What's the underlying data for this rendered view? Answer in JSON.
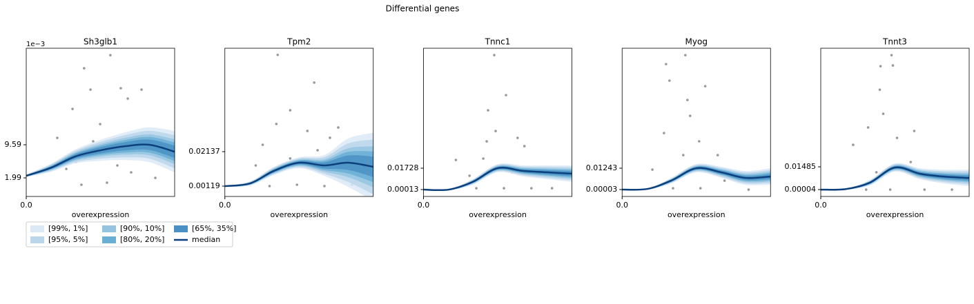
{
  "title": "Differential genes",
  "legend": {
    "location": "lower left",
    "columns": 3,
    "entries": [
      {
        "name": "[99%, 1%]",
        "color": "#dbe9f6"
      },
      {
        "name": "[95%, 5%]",
        "color": "#bad6eb"
      },
      {
        "name": "[90%, 10%]",
        "color": "#94c4df"
      },
      {
        "name": "[80%, 20%]",
        "color": "#6aaed6"
      },
      {
        "name": "[65%, 35%]",
        "color": "#4a90c4"
      },
      {
        "name": "median",
        "color": "#0b3f7d"
      }
    ]
  },
  "point_color": "#999999",
  "chart_data": [
    {
      "type": "line",
      "title": "Sh3glb1",
      "y_offset_label": "1e−3",
      "x_label": "overexpression",
      "xlim": [
        0,
        1
      ],
      "xticks": [
        {
          "value": 0,
          "label": "0.0"
        }
      ],
      "ylim": [
        -2.28,
        31.76
      ],
      "yticks": [
        1.99,
        9.59
      ],
      "x": [
        0,
        0.17,
        0.33,
        0.5,
        0.67,
        0.83,
        1
      ],
      "bands": [
        {
          "lower": [
            2.16,
            3.41,
            5.3,
            5.92,
            6.07,
            5.59,
            3.25
          ],
          "upper": [
            2.76,
            5.31,
            8.5,
            10.72,
            12.47,
            13.59,
            12.75
          ]
        },
        {
          "lower": [
            2.22,
            3.6,
            5.62,
            6.4,
            6.71,
            6.39,
            4.2
          ],
          "upper": [
            2.7,
            5.12,
            8.18,
            10.24,
            11.83,
            12.79,
            11.8
          ]
        },
        {
          "lower": [
            2.28,
            3.79,
            5.94,
            6.88,
            7.35,
            7.19,
            5.15
          ],
          "upper": [
            2.64,
            4.93,
            7.86,
            9.76,
            11.19,
            11.99,
            10.85
          ]
        },
        {
          "lower": [
            2.32,
            3.93,
            6.18,
            7.24,
            7.83,
            7.79,
            5.86
          ],
          "upper": [
            2.6,
            4.79,
            7.62,
            9.4,
            10.71,
            11.39,
            10.14
          ]
        },
        {
          "lower": [
            2.37,
            4.07,
            6.42,
            7.6,
            8.31,
            8.39,
            6.57
          ],
          "upper": [
            2.55,
            4.65,
            7.38,
            9.04,
            10.23,
            10.79,
            9.43
          ]
        }
      ],
      "median": [
        2.46,
        4.36,
        6.9,
        8.32,
        9.27,
        9.59,
        8.0
      ],
      "points": {
        "x": [
          0.567,
          0.39,
          0.433,
          0.637,
          0.777,
          0.312,
          0.684,
          0.498,
          0.209,
          0.27,
          0.372,
          0.544,
          0.87,
          0.94,
          0.614,
          0.335,
          0.451,
          0.707
        ],
        "y": [
          30.17,
          27.16,
          22.26,
          22.57,
          22.26,
          17.82,
          20.2,
          14.34,
          11.17,
          4.05,
          0.41,
          0.88,
          1.99,
          8.32,
          4.84,
          5.63,
          10.38,
          3.26
        ]
      }
    },
    {
      "type": "line",
      "title": "Tpm2",
      "x_label": "overexpression",
      "xlim": [
        0,
        1
      ],
      "xticks": [
        {
          "value": 0,
          "label": "0.0"
        }
      ],
      "ylim": [
        -0.00486,
        0.0819
      ],
      "yticks": [
        0.00119,
        0.02137
      ],
      "x": [
        0,
        0.17,
        0.33,
        0.5,
        0.67,
        0.83,
        1
      ],
      "bands": [
        {
          "lower": [
            0.00079,
            0.0016,
            0.0077,
            0.0117,
            0.0072,
            0.0008,
            -0.0075
          ],
          "upper": [
            0.00159,
            0.004,
            0.0125,
            0.0181,
            0.0194,
            0.029,
            0.0325
          ]
        },
        {
          "lower": [
            0.00087,
            0.00184,
            0.00818,
            0.01234,
            0.00842,
            0.00362,
            -0.0035
          ],
          "upper": [
            0.00151,
            0.00376,
            0.01202,
            0.01746,
            0.01818,
            0.02618,
            0.0285
          ]
        },
        {
          "lower": [
            0.00095,
            0.00208,
            0.00866,
            0.01298,
            0.00964,
            0.00644,
            0.0005
          ],
          "upper": [
            0.00143,
            0.00352,
            0.01154,
            0.01682,
            0.01696,
            0.02336,
            0.0245
          ]
        },
        {
          "lower": [
            0.00101,
            0.00226,
            0.00902,
            0.01346,
            0.01055,
            0.00855,
            0.0035
          ],
          "upper": [
            0.00137,
            0.00334,
            0.01118,
            0.01634,
            0.01605,
            0.02125,
            0.0215
          ]
        },
        {
          "lower": [
            0.00107,
            0.00244,
            0.00938,
            0.01394,
            0.01147,
            0.01067,
            0.0065
          ],
          "upper": [
            0.00131,
            0.00316,
            0.01082,
            0.01586,
            0.01513,
            0.01913,
            0.0185
          ]
        }
      ],
      "median": [
        0.00119,
        0.0028,
        0.0101,
        0.0149,
        0.0133,
        0.0149,
        0.0125
      ],
      "points": {
        "x": [
          0.356,
          0.602,
          0.44,
          0.255,
          0.208,
          0.301,
          0.486,
          0.671,
          0.708,
          0.625,
          0.44,
          0.856,
          0.347,
          0.556,
          0.324,
          0.764
        ],
        "y": [
          0.078,
          0.0618,
          0.0456,
          0.0254,
          0.0133,
          0.0012,
          0.002,
          0.0012,
          0.0295,
          0.0222,
          0.0174,
          0.002,
          0.0376,
          0.0335,
          0.0093,
          0.0355
        ]
      }
    },
    {
      "type": "line",
      "title": "Tnnc1",
      "x_label": "overexpression",
      "xlim": [
        0,
        1
      ],
      "xticks": [
        {
          "value": 0,
          "label": "0.0"
        }
      ],
      "ylim": [
        -0.0054,
        0.1135
      ],
      "yticks": [
        0.00013,
        0.01728
      ],
      "x": [
        0,
        0.17,
        0.33,
        0.5,
        0.67,
        0.83,
        1
      ],
      "bands": [
        {
          "lower": [
            0.0001,
            -0.0005,
            0.004,
            0.014,
            0.0107,
            0.0085,
            0.0063
          ],
          "upper": [
            0.0001,
            0.0007,
            0.0084,
            0.0206,
            0.0195,
            0.0195,
            0.0195
          ]
        },
        {
          "lower": [
            0.0001,
            -0.0004,
            0.0044,
            0.0147,
            0.0116,
            0.0096,
            0.0076
          ],
          "upper": [
            0.0001,
            0.0006,
            0.008,
            0.0199,
            0.0186,
            0.0184,
            0.0182
          ]
        },
        {
          "lower": [
            0.0001,
            -0.0003,
            0.0049,
            0.0153,
            0.0125,
            0.0107,
            0.0089
          ],
          "upper": [
            0.0001,
            0.0005,
            0.0075,
            0.0193,
            0.0177,
            0.0173,
            0.0169
          ]
        },
        {
          "lower": [
            0.0001,
            -0.0002,
            0.0052,
            0.0158,
            0.0131,
            0.0115,
            0.0099
          ],
          "upper": [
            0.0001,
            0.0004,
            0.0072,
            0.0188,
            0.0171,
            0.0165,
            0.0159
          ]
        },
        {
          "lower": [
            0.0001,
            -0.0001,
            0.0055,
            0.0163,
            0.0138,
            0.0123,
            0.0109
          ],
          "upper": [
            0.0001,
            0.0003,
            0.0069,
            0.0183,
            0.0164,
            0.0157,
            0.0149
          ]
        }
      ],
      "median": [
        0.0001,
        0.0001,
        0.0062,
        0.0173,
        0.0151,
        0.014,
        0.0129
      ],
      "points": {
        "x": [
          0.477,
          0.556,
          0.435,
          0.486,
          0.634,
          0.403,
          0.218,
          0.597,
          0.356,
          0.542,
          0.727,
          0.866,
          0.31,
          0.68,
          0.426
        ],
        "y": [
          0.108,
          0.0759,
          0.0637,
          0.0471,
          0.0416,
          0.025,
          0.0239,
          0.0139,
          0.0012,
          0.0012,
          0.0012,
          0.0012,
          0.0112,
          0.035,
          0.0388
        ]
      }
    },
    {
      "type": "line",
      "title": "Myog",
      "x_label": "overexpression",
      "xlim": [
        0,
        1
      ],
      "xticks": [
        {
          "value": 0,
          "label": "0.0"
        }
      ],
      "ylim": [
        -0.00397,
        0.082
      ],
      "yticks": [
        3e-05,
        0.01243
      ],
      "x": [
        0,
        0.17,
        0.33,
        0.5,
        0.67,
        0.83,
        1
      ],
      "bands": [
        {
          "lower": [
            0,
            0,
            0.0036,
            0.01,
            0.0068,
            0.0028,
            0.0028
          ],
          "upper": [
            0,
            0.0008,
            0.0068,
            0.0148,
            0.0132,
            0.0108,
            0.0124
          ]
        },
        {
          "lower": [
            0,
            0.0001,
            0.0039,
            0.0105,
            0.0074,
            0.0036,
            0.0038
          ],
          "upper": [
            0,
            0.0007,
            0.0065,
            0.0143,
            0.0126,
            0.01,
            0.0114
          ]
        },
        {
          "lower": [
            0,
            0.0002,
            0.0042,
            0.011,
            0.0081,
            0.0044,
            0.0047
          ],
          "upper": [
            0,
            0.0006,
            0.0062,
            0.0138,
            0.0119,
            0.0092,
            0.0105
          ]
        },
        {
          "lower": [
            0,
            0.0002,
            0.0045,
            0.0113,
            0.0086,
            0.005,
            0.0054
          ],
          "upper": [
            0,
            0.0006,
            0.0059,
            0.0135,
            0.0114,
            0.0086,
            0.0098
          ]
        },
        {
          "lower": [
            0,
            0.0003,
            0.0047,
            0.0117,
            0.009,
            0.0056,
            0.0062
          ],
          "upper": [
            0,
            0.0005,
            0.0057,
            0.0131,
            0.011,
            0.008,
            0.009
          ]
        }
      ],
      "median": [
        0,
        0.0004,
        0.0052,
        0.0124,
        0.01,
        0.0068,
        0.0076
      ],
      "points": {
        "x": [
          0.426,
          0.296,
          0.319,
          0.56,
          0.44,
          0.458,
          0.282,
          0.519,
          0.412,
          0.204,
          0.644,
          0.343,
          0.528,
          0.69,
          0.852
        ],
        "y": [
          0.078,
          0.0728,
          0.0632,
          0.06,
          0.052,
          0.0428,
          0.0328,
          0.028,
          0.02,
          0.0116,
          0.02,
          0.0008,
          0.0008,
          0.0052,
          0
        ]
      }
    },
    {
      "type": "line",
      "title": "Tnnt3",
      "x_label": "overexpression",
      "xlim": [
        0,
        1
      ],
      "xticks": [
        {
          "value": 0,
          "label": "0.0"
        }
      ],
      "ylim": [
        -0.00445,
        0.0921
      ],
      "yticks": [
        4e-05,
        0.01485
      ],
      "x": [
        0,
        0.17,
        0.33,
        0.5,
        0.67,
        0.83,
        1
      ],
      "bands": [
        {
          "lower": [
            0,
            0,
            0.0027,
            0.0117,
            0.0067,
            0.004,
            0.0022
          ],
          "upper": [
            0,
            0.0008,
            0.0063,
            0.0171,
            0.0139,
            0.013,
            0.013
          ]
        },
        {
          "lower": [
            0,
            0.0001,
            0.0031,
            0.0122,
            0.0074,
            0.0049,
            0.0033
          ],
          "upper": [
            0,
            0.0007,
            0.0059,
            0.0166,
            0.0132,
            0.0121,
            0.0119
          ]
        },
        {
          "lower": [
            0,
            0.0002,
            0.0034,
            0.0128,
            0.0081,
            0.0058,
            0.0044
          ],
          "upper": [
            0,
            0.0006,
            0.0056,
            0.016,
            0.0125,
            0.0112,
            0.0108
          ]
        },
        {
          "lower": [
            0,
            0.0002,
            0.0037,
            0.0132,
            0.0087,
            0.0065,
            0.0052
          ],
          "upper": [
            0,
            0.0006,
            0.0053,
            0.0156,
            0.0119,
            0.0105,
            0.01
          ]
        },
        {
          "lower": [
            0,
            0.0003,
            0.004,
            0.0136,
            0.0092,
            0.0071,
            0.006
          ],
          "upper": [
            0,
            0.0005,
            0.005,
            0.0152,
            0.0114,
            0.0099,
            0.0092
          ]
        }
      ],
      "median": [
        0,
        0.0004,
        0.0045,
        0.0144,
        0.0103,
        0.0085,
        0.0076
      ],
      "points": {
        "x": [
          0.477,
          0.403,
          0.486,
          0.398,
          0.421,
          0.319,
          0.63,
          0.218,
          0.514,
          0.606,
          0.306,
          0.468,
          0.699,
          0.884,
          0.375
        ],
        "y": [
          0.0876,
          0.0804,
          0.0809,
          0.0651,
          0.0494,
          0.0405,
          0.0382,
          0.0292,
          0.0337,
          0.018,
          0,
          0,
          0,
          0,
          0.0113
        ]
      }
    }
  ]
}
